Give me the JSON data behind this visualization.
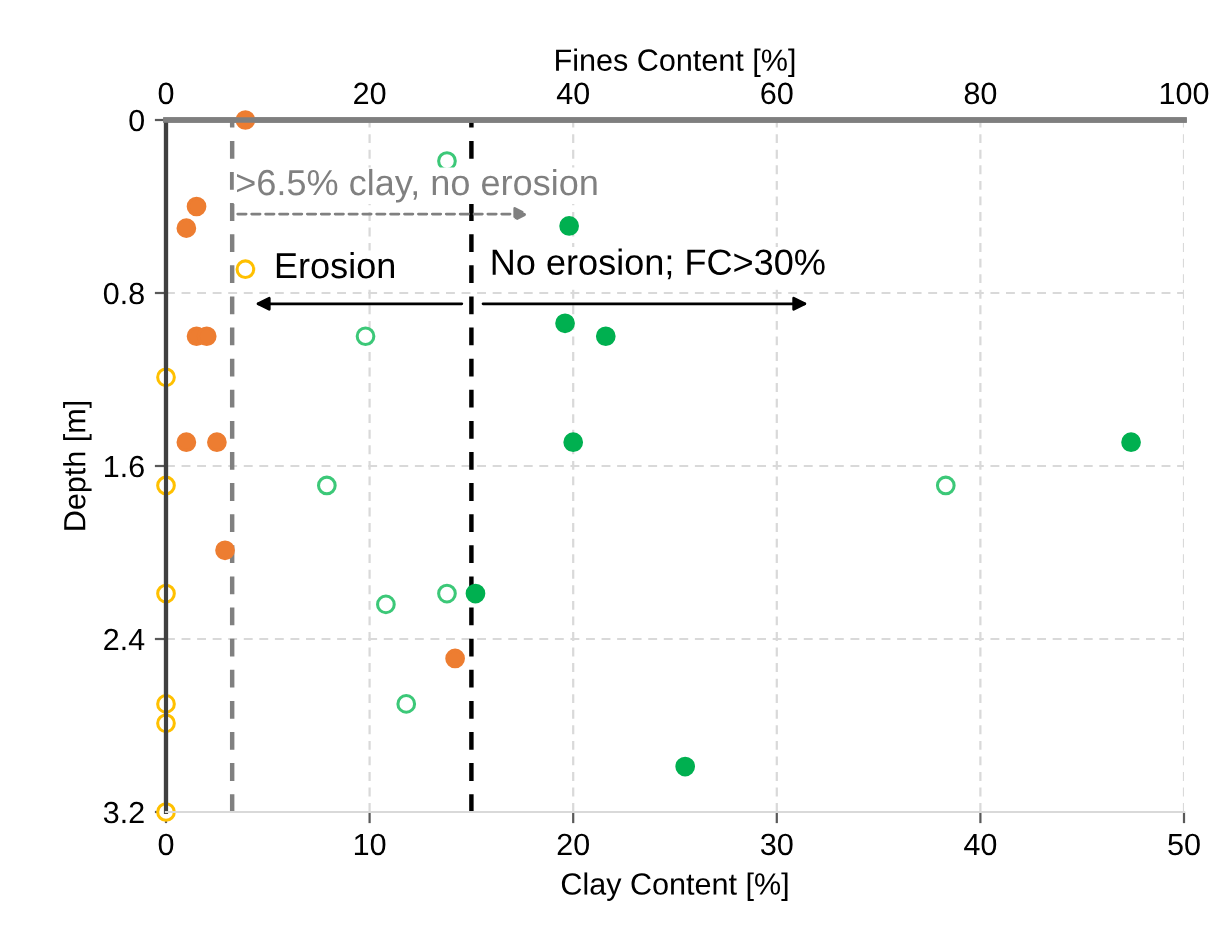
{
  "chart_data": {
    "type": "scatter",
    "xlabel": "Clay Content [%]",
    "x2label": "Fines Content [%]",
    "ylabel": "Depth [m]",
    "xlim": [
      0,
      50
    ],
    "xticks": [
      0,
      10,
      20,
      30,
      40,
      50
    ],
    "x2lim": [
      0,
      100
    ],
    "x2ticks": [
      0,
      20,
      40,
      60,
      80,
      100
    ],
    "ylim": [
      3.2,
      0
    ],
    "yticks": [
      0,
      0.8,
      1.6,
      2.4,
      3.2
    ],
    "grid": true,
    "marker": "circle",
    "legend": false,
    "series": [
      {
        "color": "#ed7d31",
        "x": [
          3.9,
          1.5,
          1.0,
          1.5,
          2.0,
          1.0,
          2.5,
          2.9,
          14.2
        ],
        "values": [
          0,
          0.4,
          0.5,
          1.0,
          1.0,
          1.49,
          1.49,
          1.99,
          2.49
        ]
      },
      {
        "color": "#ffc000",
        "x": [
          3.9,
          0,
          0,
          0,
          0,
          0,
          0
        ],
        "values": [
          0.69,
          1.19,
          1.69,
          2.19,
          2.7,
          2.79,
          3.2
        ]
      },
      {
        "color": "#00b050",
        "x": [
          19.8,
          19.6,
          21.6,
          20.0,
          47.4,
          15.2,
          25.5
        ],
        "values": [
          0.49,
          0.94,
          1.0,
          1.49,
          1.49,
          2.19,
          2.99
        ]
      },
      {
        "color": "#3cc878",
        "x": [
          13.8,
          9.8,
          7.9,
          38.3,
          10.8,
          13.8,
          11.8
        ],
        "values": [
          0.19,
          1.0,
          1.69,
          1.69,
          2.24,
          2.19,
          2.7
        ]
      }
    ],
    "ref_lines": [
      {
        "axis": "x",
        "value": 3.25,
        "color": "#808080",
        "line_style": "dashed"
      },
      {
        "axis": "x",
        "value": 15,
        "color": "#000000",
        "line_style": "dashed"
      }
    ],
    "annotations": [
      ">6.5% clay, no erosion",
      "Erosion",
      "No erosion; FC>30%"
    ]
  }
}
